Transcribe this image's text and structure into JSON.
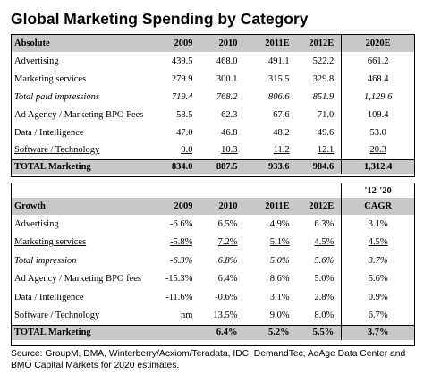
{
  "title": "Global Marketing Spending by Category",
  "absolute": {
    "header": [
      "Absolute",
      "2009",
      "2010",
      "2011E",
      "2012E",
      "2020E"
    ],
    "rows": [
      {
        "label": "Advertising",
        "values": [
          "439.5",
          "468.0",
          "491.1",
          "522.2",
          "661.2"
        ],
        "italic": false,
        "underline": false
      },
      {
        "label": "Marketing services",
        "values": [
          "279.9",
          "300.1",
          "315.5",
          "329.8",
          "468.4"
        ],
        "italic": false,
        "underline": false
      },
      {
        "label": "Total paid impressions",
        "values": [
          "719.4",
          "768.2",
          "806.6",
          "851.9",
          "1,129.6"
        ],
        "italic": true,
        "underline": false
      },
      {
        "label": "Ad Agency / Marketing BPO Fees",
        "values": [
          "58.5",
          "62.3",
          "67.6",
          "71.0",
          "109.4"
        ],
        "italic": false,
        "underline": false
      },
      {
        "label": "Data / Intelligence",
        "values": [
          "47.0",
          "46.8",
          "48.2",
          "49.6",
          "53.0"
        ],
        "italic": false,
        "underline": false
      },
      {
        "label": "Software / Technology",
        "values": [
          "9.0",
          "10.3",
          "11.2",
          "12.1",
          "20.3"
        ],
        "italic": false,
        "underline": true
      }
    ],
    "total": {
      "label": "TOTAL Marketing",
      "values": [
        "834.0",
        "887.5",
        "933.6",
        "984.6",
        "1,312.4"
      ]
    }
  },
  "growth": {
    "cagr_top": "'12-'20",
    "header": [
      "Growth",
      "2009",
      "2010",
      "2011E",
      "2012E",
      "CAGR"
    ],
    "rows": [
      {
        "label": "Advertising",
        "values": [
          "-6.6%",
          "6.5%",
          "4.9%",
          "6.3%",
          "3.1%"
        ],
        "italic": false,
        "underline": false
      },
      {
        "label": "Marketing services",
        "values": [
          "-5.8%",
          "7.2%",
          "5.1%",
          "4.5%",
          "4.5%"
        ],
        "italic": false,
        "underline": true
      },
      {
        "label": "Total impression",
        "values": [
          "-6.3%",
          "6.8%",
          "5.0%",
          "5.6%",
          "3.7%"
        ],
        "italic": true,
        "underline": false
      },
      {
        "label": "Ad Agency / Marketing BPO fees",
        "values": [
          "-15.3%",
          "6.4%",
          "8.6%",
          "5.0%",
          "5.6%"
        ],
        "italic": false,
        "underline": false
      },
      {
        "label": "Data / Intelligence",
        "values": [
          "-11.6%",
          "-0.6%",
          "3.1%",
          "2.8%",
          "0.9%"
        ],
        "italic": false,
        "underline": false
      },
      {
        "label": "Software / Technology",
        "values": [
          "nm",
          "13.5%",
          "9.0%",
          "8.0%",
          "6.7%"
        ],
        "italic": false,
        "underline": true
      }
    ],
    "total": {
      "label": "TOTAL Marketing",
      "values": [
        "",
        "6.4%",
        "5.2%",
        "5.5%",
        "3.7%"
      ]
    }
  },
  "source": "Source: GroupM, DMA, Winterberry/Acxiom/Teradata, IDC, DemandTec, AdAge Data Center and BMO Capital Markets for 2020 estimates."
}
